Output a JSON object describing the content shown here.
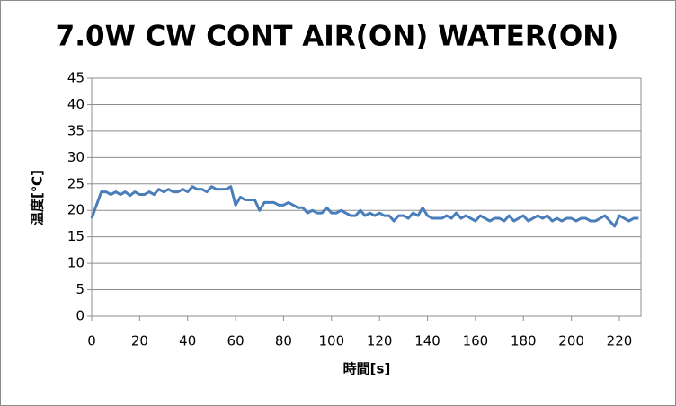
{
  "chart_data": {
    "type": "line",
    "title": "7.0W CW CONT AIR(ON) WATER(ON)",
    "x_label": "時間[s]",
    "y_label": "温度[℃]",
    "xlim": [
      0,
      229
    ],
    "xticks": [
      0,
      20,
      40,
      60,
      80,
      100,
      120,
      140,
      160,
      180,
      200,
      220
    ],
    "ylim": [
      0,
      45
    ],
    "yticks": [
      0,
      5,
      10,
      15,
      20,
      25,
      30,
      35,
      40,
      45
    ],
    "grid": true,
    "x": [
      0,
      2,
      4,
      6,
      8,
      10,
      12,
      14,
      16,
      18,
      20,
      22,
      24,
      26,
      28,
      30,
      32,
      34,
      36,
      38,
      40,
      42,
      44,
      46,
      48,
      50,
      52,
      54,
      56,
      58,
      60,
      62,
      64,
      66,
      68,
      70,
      72,
      74,
      76,
      78,
      80,
      82,
      84,
      86,
      88,
      90,
      92,
      94,
      96,
      98,
      100,
      102,
      104,
      106,
      108,
      110,
      112,
      114,
      116,
      118,
      120,
      122,
      124,
      126,
      128,
      130,
      132,
      134,
      136,
      138,
      140,
      142,
      144,
      146,
      148,
      150,
      152,
      154,
      156,
      158,
      160,
      162,
      164,
      166,
      168,
      170,
      172,
      174,
      176,
      178,
      180,
      182,
      184,
      186,
      188,
      190,
      192,
      194,
      196,
      198,
      200,
      202,
      204,
      206,
      208,
      210,
      212,
      214,
      216,
      218,
      220,
      222,
      224,
      226,
      228
    ],
    "series": [
      {
        "name": "温度",
        "color": "#4a7ebb",
        "values": [
          18.5,
          21,
          23.5,
          23.5,
          23,
          23.5,
          23,
          23.5,
          22.8,
          23.5,
          23,
          23,
          23.5,
          23,
          24,
          23.5,
          24,
          23.5,
          23.5,
          24,
          23.5,
          24.5,
          24,
          24,
          23.5,
          24.5,
          24,
          24,
          24,
          24.5,
          21,
          22.5,
          22,
          22,
          22,
          20,
          21.5,
          21.5,
          21.5,
          21,
          21,
          21.5,
          21,
          20.5,
          20.5,
          19.5,
          20,
          19.5,
          19.5,
          20.5,
          19.5,
          19.5,
          20,
          19.5,
          19,
          19,
          20,
          19,
          19.5,
          19,
          19.5,
          19,
          19,
          18,
          19,
          19,
          18.5,
          19.5,
          19,
          20.5,
          19,
          18.5,
          18.5,
          18.5,
          19,
          18.5,
          19.5,
          18.5,
          19,
          18.5,
          18,
          19,
          18.5,
          18,
          18.5,
          18.5,
          18,
          19,
          18,
          18.5,
          19,
          18,
          18.5,
          19,
          18.5,
          19,
          18,
          18.5,
          18,
          18.5,
          18.5,
          18,
          18.5,
          18.5,
          18,
          18,
          18.5,
          19,
          18,
          17,
          19,
          18.5,
          18,
          18.5,
          18.5
        ]
      }
    ]
  }
}
